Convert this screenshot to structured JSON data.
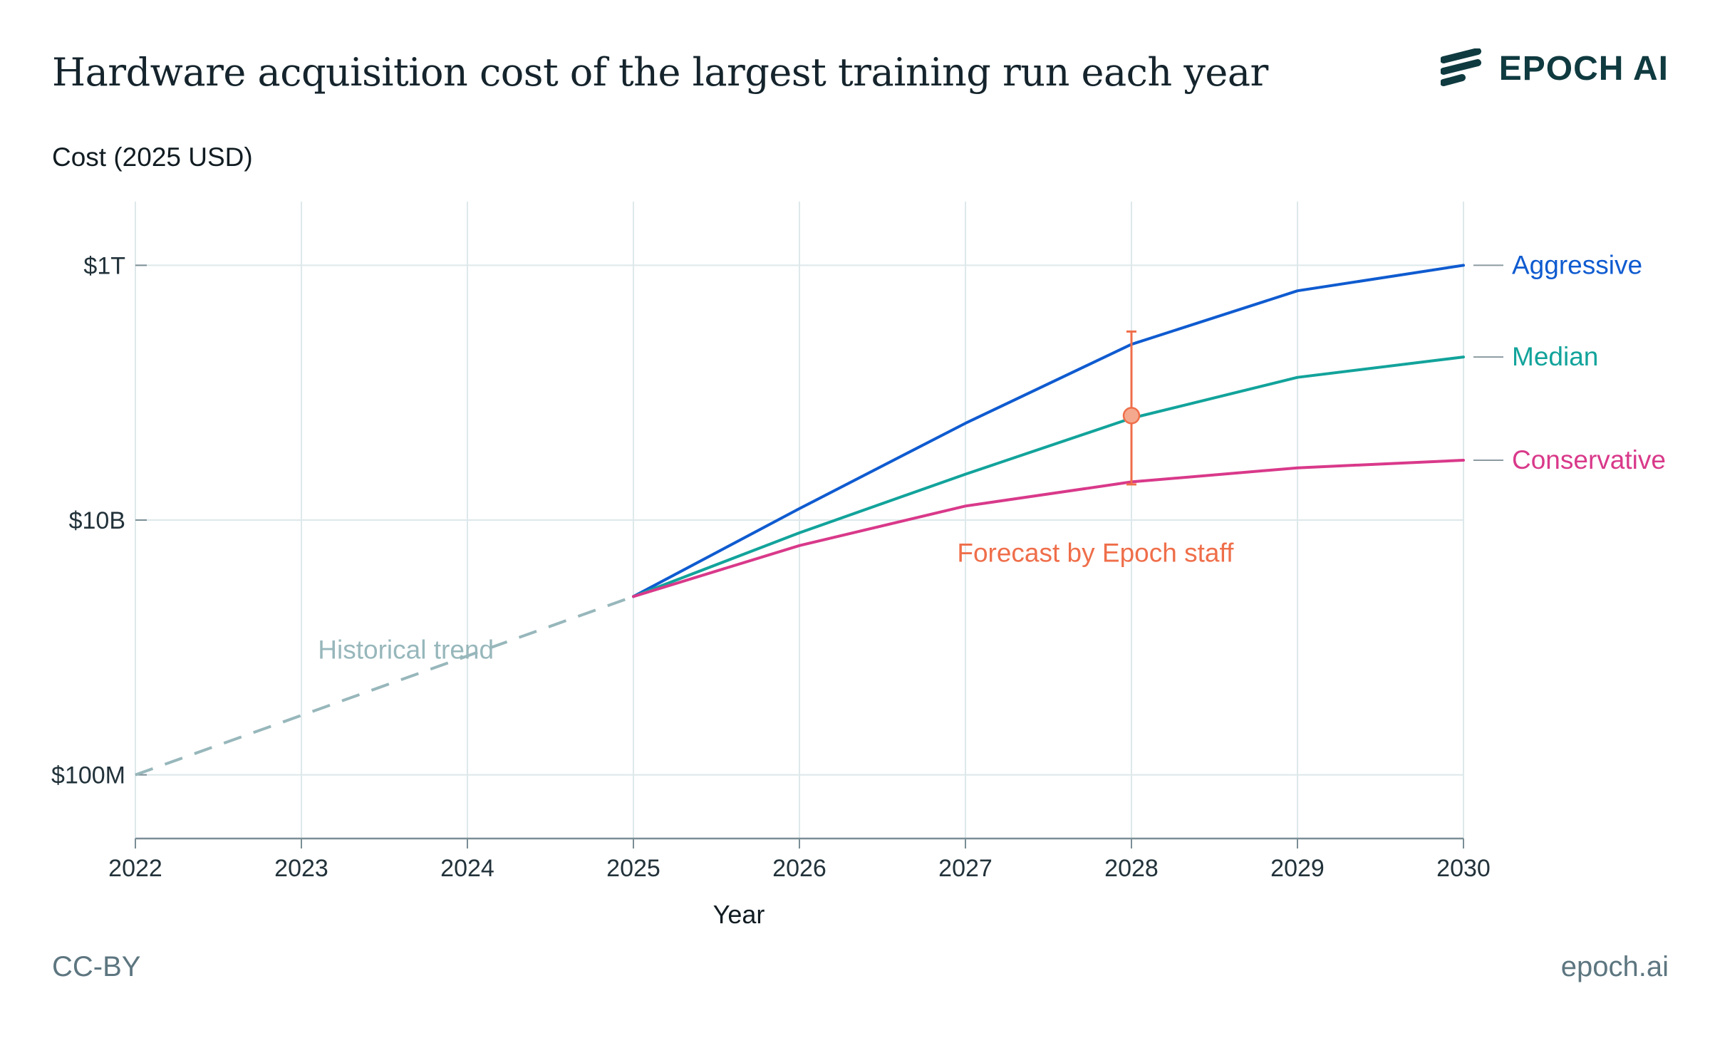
{
  "header": {
    "title": "Hardware acquisition cost of the largest training run each year",
    "brand": "EPOCH AI"
  },
  "footer": {
    "license": "CC-BY",
    "site": "epoch.ai"
  },
  "colors": {
    "aggressive": "#0f5bd0",
    "median": "#12a39b",
    "conservative": "#d9398a",
    "historical": "#97b7bb",
    "forecast": "#ef6e4a",
    "grid": "#dde8ea",
    "axis": "#7a8e95",
    "brand": "#0f3a40"
  },
  "chart_data": {
    "type": "line",
    "title": "Hardware acquisition cost of the largest training run each year",
    "xlabel": "Year",
    "ylabel": "Cost (2025 USD)",
    "yscale": "log",
    "xlim": [
      2022,
      2030
    ],
    "ylim_log10": [
      7.5,
      12.5
    ],
    "x_ticks": [
      2022,
      2023,
      2024,
      2025,
      2026,
      2027,
      2028,
      2029,
      2030
    ],
    "x_tick_labels": [
      "2022",
      "2023",
      "2024",
      "2025",
      "2026",
      "2027",
      "2028",
      "2029",
      "2030"
    ],
    "y_ticks_log10": [
      8,
      10,
      12
    ],
    "y_tick_labels": [
      "$100M",
      "$10B",
      "$1T"
    ],
    "grid": true,
    "series": [
      {
        "name": "Historical trend",
        "key": "historical",
        "style": "dashed",
        "x": [
          2022,
          2025
        ],
        "log10_values": [
          8.0,
          9.4
        ]
      },
      {
        "name": "Aggressive",
        "key": "aggressive",
        "style": "solid",
        "x": [
          2025,
          2026,
          2027,
          2028,
          2029,
          2030
        ],
        "log10_values": [
          9.4,
          10.09,
          10.76,
          11.38,
          11.8,
          12.0
        ]
      },
      {
        "name": "Median",
        "key": "median",
        "style": "solid",
        "x": [
          2025,
          2026,
          2027,
          2028,
          2029,
          2030
        ],
        "log10_values": [
          9.4,
          9.9,
          10.36,
          10.8,
          11.12,
          11.28
        ]
      },
      {
        "name": "Conservative",
        "key": "conservative",
        "style": "solid",
        "x": [
          2025,
          2026,
          2027,
          2028,
          2029,
          2030
        ],
        "log10_values": [
          9.4,
          9.8,
          10.11,
          10.3,
          10.41,
          10.47
        ]
      }
    ],
    "forecast": {
      "label": "Forecast by Epoch staff",
      "x": 2028,
      "log10_value": 10.82,
      "log10_low": 10.28,
      "log10_high": 11.48
    },
    "annotations": [
      {
        "text": "Historical trend",
        "x": 2023.1,
        "log10_value": 8.98,
        "key": "historical"
      },
      {
        "text": "Forecast by Epoch staff",
        "x": 2026.95,
        "log10_value": 9.74,
        "key": "forecast"
      }
    ]
  }
}
